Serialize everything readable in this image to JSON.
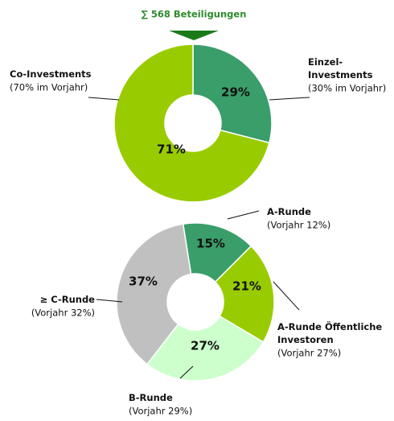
{
  "chart_data": [
    {
      "type": "donut",
      "title": "∑ 568 Beteiligungen",
      "categories": [
        "Einzel-\nInvestments",
        "Co-Investments"
      ],
      "values": [
        29,
        71
      ],
      "value_labels": [
        "29%",
        "71%"
      ],
      "notes": [
        "(30% im Vorjahr)",
        "(70% im Vorjahr)"
      ],
      "colors": [
        "#3a9e6a",
        "#99cc00"
      ]
    },
    {
      "type": "donut",
      "categories": [
        "A-Runde",
        "A-Runde Öffentliche\nInvestoren",
        "B-Runde",
        "≥ C-Runde"
      ],
      "values": [
        15,
        21,
        27,
        37
      ],
      "value_labels": [
        "15%",
        "21%",
        "27%",
        "37%"
      ],
      "notes": [
        "(Vorjahr 12%)",
        "(Vorjahr 27%)",
        "(Vorjahr 29%)",
        "(Vorjahr 32%)"
      ],
      "colors": [
        "#3a9e6a",
        "#99cc00",
        "#ccffcc",
        "#c0c0c0"
      ]
    }
  ]
}
